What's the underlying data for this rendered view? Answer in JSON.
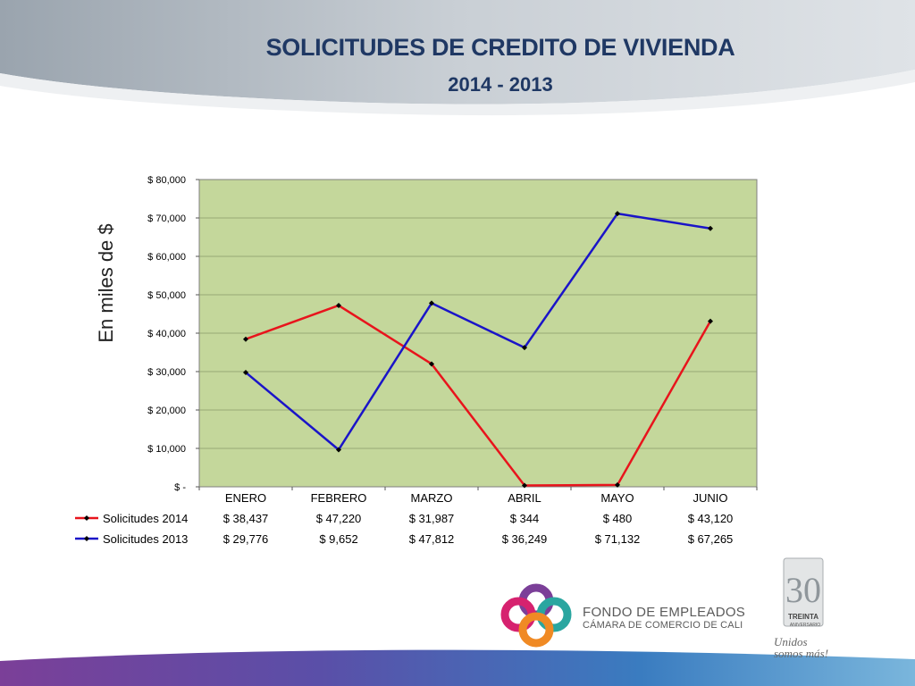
{
  "title": "SOLICITUDES DE CREDITO DE VIVIENDA",
  "subtitle": "2014 - 2013",
  "colors": {
    "title": "#1f3864",
    "plot_bg": "#c4d79b",
    "series_2014": "#e8141c",
    "series_2013": "#1a14c8",
    "grid": "#8a9a6a"
  },
  "chart_data": {
    "type": "line",
    "title": "SOLICITUDES DE CREDITO DE VIVIENDA",
    "subtitle": "2014 - 2013",
    "ylabel": "En miles de $",
    "xlabel": "",
    "categories": [
      "ENERO",
      "FEBRERO",
      "MARZO",
      "ABRIL",
      "MAYO",
      "JUNIO"
    ],
    "ylim": [
      0,
      80000
    ],
    "yticks": [
      0,
      10000,
      20000,
      30000,
      40000,
      50000,
      60000,
      70000,
      80000
    ],
    "ytick_labels": [
      "$ -",
      "$ 10,000",
      "$ 20,000",
      "$ 30,000",
      "$ 40,000",
      "$ 50,000",
      "$ 60,000",
      "$ 70,000",
      "$ 80,000"
    ],
    "grid": true,
    "legend": "data-table below chart",
    "series": [
      {
        "name": "Solicitudes 2014",
        "values": [
          38437,
          47220,
          31987,
          344,
          480,
          43120
        ],
        "labels": [
          "$ 38,437",
          "$ 47,220",
          "$ 31,987",
          "$ 344",
          "$ 480",
          "$ 43,120"
        ]
      },
      {
        "name": "Solicitudes 2013",
        "values": [
          29776,
          9652,
          47812,
          36249,
          71132,
          67265
        ],
        "labels": [
          "$ 29,776",
          "$ 9,652",
          "$ 47,812",
          "$ 36,249",
          "$ 71,132",
          "$ 67,265"
        ]
      }
    ]
  },
  "logo": {
    "line1": "FONDO DE EMPLEADOS",
    "line2": "CÁMARA DE COMERCIO DE CALI"
  },
  "anniversary": {
    "number": "30",
    "word": "TREINTA",
    "small": "ANIVERSARIO",
    "slogan_1": "Unidos",
    "slogan_2": "somos más!"
  }
}
